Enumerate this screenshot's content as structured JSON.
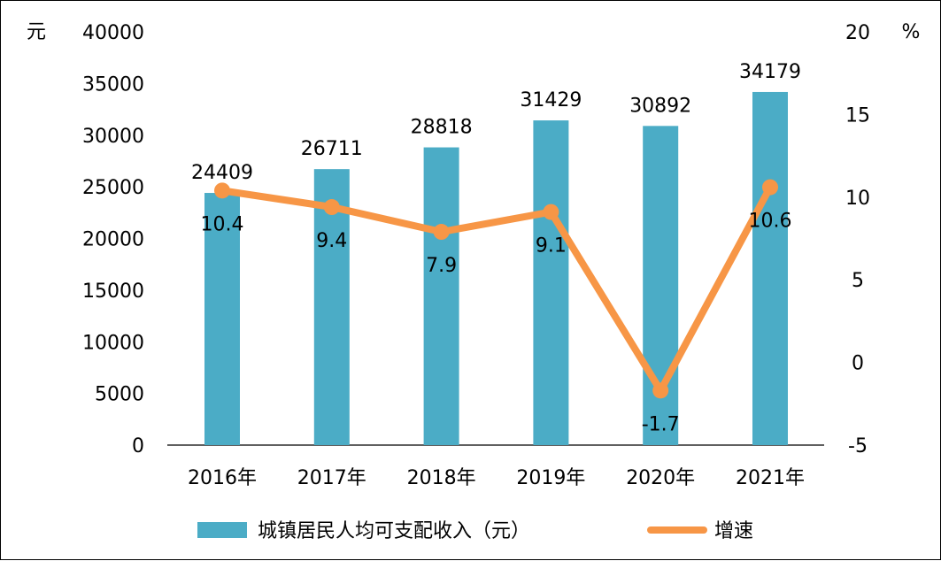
{
  "chart_data": {
    "type": "bar+line",
    "categories": [
      "2016年",
      "2017年",
      "2018年",
      "2019年",
      "2020年",
      "2021年"
    ],
    "series": [
      {
        "name": "城镇居民人均可支配收入（元）",
        "type": "bar",
        "axis": "left",
        "values": [
          24409,
          26711,
          28818,
          31429,
          30892,
          34179
        ]
      },
      {
        "name": "增速",
        "type": "line",
        "axis": "right",
        "values": [
          10.4,
          9.4,
          7.9,
          9.1,
          -1.7,
          10.6
        ]
      }
    ],
    "y_left": {
      "unit": "元",
      "range": [
        0,
        40000
      ],
      "ticks": [
        "0",
        "5000",
        "10000",
        "15000",
        "20000",
        "25000",
        "30000",
        "35000",
        "40000"
      ]
    },
    "y_right": {
      "unit": "%",
      "range": [
        -5,
        20
      ],
      "ticks": [
        "-5",
        "0",
        "5",
        "10",
        "15",
        "20"
      ]
    },
    "grid": false,
    "legend": "bottom",
    "colors": {
      "bar": "#4BACC6",
      "line": "#F79646"
    }
  }
}
